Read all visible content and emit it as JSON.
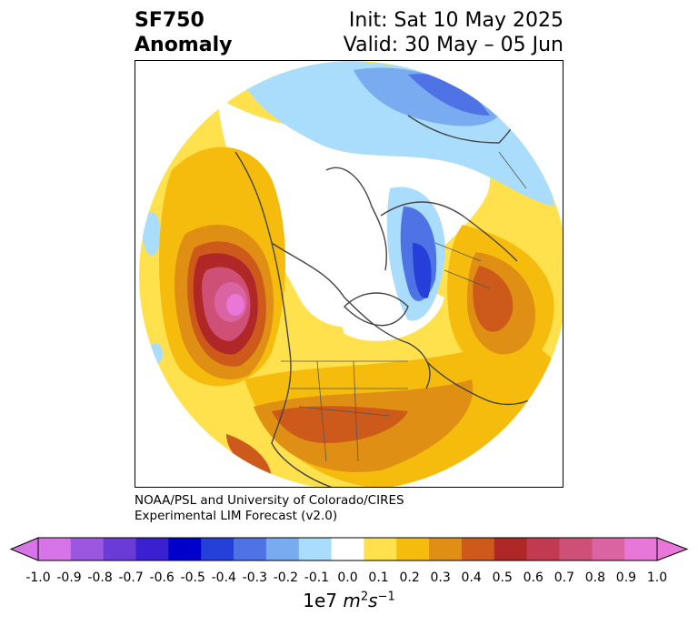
{
  "title": {
    "left_line1": "SF750",
    "left_line2": "Anomaly",
    "right_line1": "Init: Sat 10 May 2025",
    "right_line2": "Valid: 30 May – 05 Jun"
  },
  "credit": {
    "line1": "NOAA/PSL and University of Colorado/CIRES",
    "line2": "Experimental LIM Forecast (v2.0)"
  },
  "colorbar": {
    "unit_prefix": "1e7 ",
    "unit_m": "m",
    "unit_m_exp": "2",
    "unit_s": "s",
    "unit_s_exp": "−1",
    "ticks": [
      "-1.0",
      "-0.9",
      "-0.8",
      "-0.7",
      "-0.6",
      "-0.5",
      "-0.4",
      "-0.3",
      "-0.2",
      "-0.1",
      "0.0",
      "0.1",
      "0.2",
      "0.3",
      "0.4",
      "0.5",
      "0.6",
      "0.7",
      "0.8",
      "0.9",
      "1.0"
    ],
    "colors": [
      "#d774e8",
      "#9b57e0",
      "#6b3bd8",
      "#3a20d0",
      "#0000cc",
      "#2440d8",
      "#4f72e4",
      "#78abf0",
      "#aadcfc",
      "#ffffff",
      "#ffe14d",
      "#f5bc0d",
      "#df8f13",
      "#cd5a1a",
      "#b02727",
      "#c23a50",
      "#cf5077",
      "#da63a2",
      "#e877d7"
    ]
  }
}
